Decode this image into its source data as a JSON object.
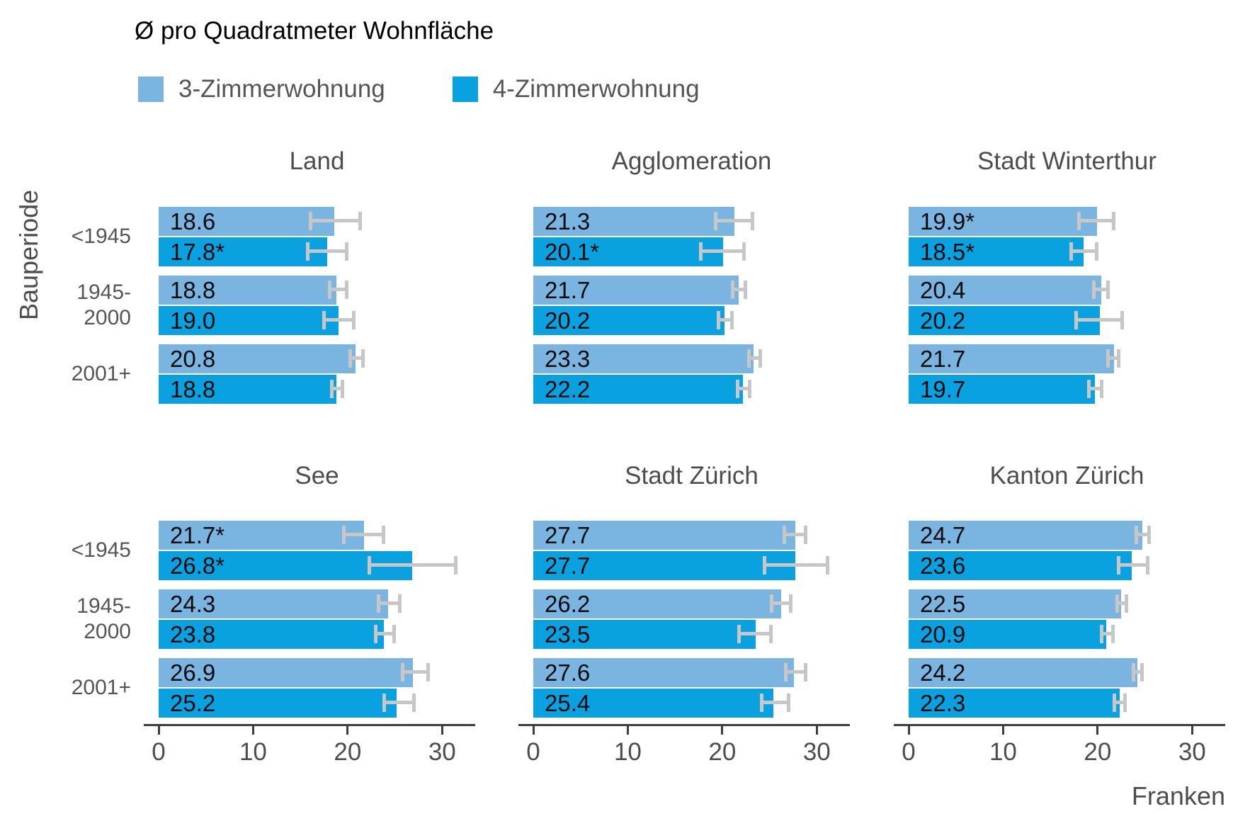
{
  "title": "Ø pro Quadratmeter Wohnfläche",
  "y_axis_label": "Bauperiode",
  "legend": [
    {
      "label": "3-Zimmerwohnung",
      "color": "#7AB4E1"
    },
    {
      "label": "4-Zimmerwohnung",
      "color": "#0AA1E0"
    }
  ],
  "row_categories": [
    {
      "label": "<1945",
      "lines": [
        "<1945"
      ]
    },
    {
      "label": "1945-2000",
      "lines": [
        "1945-",
        "2000"
      ]
    },
    {
      "label": "2001+",
      "lines": [
        "2001+"
      ]
    }
  ],
  "x_axis": {
    "label": "Franken",
    "ticks": [
      0,
      10,
      20,
      30
    ],
    "max": 33.5
  },
  "chart_data": {
    "type": "bar",
    "orientation": "horizontal",
    "unit": "Franken",
    "title": "Ø pro Quadratmeter Wohnfläche",
    "series_names": [
      "3-Zimmerwohnung",
      "4-Zimmerwohnung"
    ],
    "series_colors": [
      "#7AB4E1",
      "#0AA1E0"
    ],
    "error_bar_color": "#c7c7c7",
    "xlim": [
      0,
      33.5
    ],
    "panels": [
      {
        "title": "Land",
        "groups": [
          {
            "period": "<1945",
            "bars": [
              {
                "series": "3-Zimmerwohnung",
                "value": 18.6,
                "label": "18.6",
                "ci": [
                  15.9,
                  21.5
                ]
              },
              {
                "series": "4-Zimmerwohnung",
                "value": 17.8,
                "label": "17.8*",
                "ci": [
                  15.6,
                  20.1
                ]
              }
            ]
          },
          {
            "period": "1945-2000",
            "bars": [
              {
                "series": "3-Zimmerwohnung",
                "value": 18.8,
                "label": "18.8",
                "ci": [
                  17.9,
                  20.1
                ]
              },
              {
                "series": "4-Zimmerwohnung",
                "value": 19.0,
                "label": "19.0",
                "ci": [
                  17.3,
                  20.8
                ]
              }
            ]
          },
          {
            "period": "2001+",
            "bars": [
              {
                "series": "3-Zimmerwohnung",
                "value": 20.8,
                "label": "20.8",
                "ci": [
                  20.1,
                  21.8
                ]
              },
              {
                "series": "4-Zimmerwohnung",
                "value": 18.8,
                "label": "18.8",
                "ci": [
                  18.1,
                  19.6
                ]
              }
            ]
          }
        ]
      },
      {
        "title": "Agglomeration",
        "groups": [
          {
            "period": "<1945",
            "bars": [
              {
                "series": "3-Zimmerwohnung",
                "value": 21.3,
                "label": "21.3",
                "ci": [
                  19.1,
                  23.4
                ]
              },
              {
                "series": "4-Zimmerwohnung",
                "value": 20.1,
                "label": "20.1*",
                "ci": [
                  17.5,
                  22.5
                ]
              }
            ]
          },
          {
            "period": "1945-2000",
            "bars": [
              {
                "series": "3-Zimmerwohnung",
                "value": 21.7,
                "label": "21.7",
                "ci": [
                  20.9,
                  22.6
                ]
              },
              {
                "series": "4-Zimmerwohnung",
                "value": 20.2,
                "label": "20.2",
                "ci": [
                  19.4,
                  21.2
                ]
              }
            ]
          },
          {
            "period": "2001+",
            "bars": [
              {
                "series": "3-Zimmerwohnung",
                "value": 23.3,
                "label": "23.3",
                "ci": [
                  22.6,
                  24.2
                ]
              },
              {
                "series": "4-Zimmerwohnung",
                "value": 22.2,
                "label": "22.2",
                "ci": [
                  21.4,
                  23.1
                ]
              }
            ]
          }
        ]
      },
      {
        "title": "Stadt Winterthur",
        "groups": [
          {
            "period": "<1945",
            "bars": [
              {
                "series": "3-Zimmerwohnung",
                "value": 19.9,
                "label": "19.9*",
                "ci": [
                  17.8,
                  21.9
                ]
              },
              {
                "series": "4-Zimmerwohnung",
                "value": 18.5,
                "label": "18.5*",
                "ci": [
                  17.0,
                  20.1
                ]
              }
            ]
          },
          {
            "period": "1945-2000",
            "bars": [
              {
                "series": "3-Zimmerwohnung",
                "value": 20.4,
                "label": "20.4",
                "ci": [
                  19.4,
                  21.3
                ]
              },
              {
                "series": "4-Zimmerwohnung",
                "value": 20.2,
                "label": "20.2",
                "ci": [
                  17.5,
                  22.8
                ]
              }
            ]
          },
          {
            "period": "2001+",
            "bars": [
              {
                "series": "3-Zimmerwohnung",
                "value": 21.7,
                "label": "21.7",
                "ci": [
                  20.9,
                  22.4
                ]
              },
              {
                "series": "4-Zimmerwohnung",
                "value": 19.7,
                "label": "19.7",
                "ci": [
                  18.9,
                  20.6
                ]
              }
            ]
          }
        ]
      },
      {
        "title": "See",
        "groups": [
          {
            "period": "<1945",
            "bars": [
              {
                "series": "3-Zimmerwohnung",
                "value": 21.7,
                "label": "21.7*",
                "ci": [
                  19.4,
                  24.0
                ]
              },
              {
                "series": "4-Zimmerwohnung",
                "value": 26.8,
                "label": "26.8*",
                "ci": [
                  22.1,
                  31.6
                ]
              }
            ]
          },
          {
            "period": "1945-2000",
            "bars": [
              {
                "series": "3-Zimmerwohnung",
                "value": 24.3,
                "label": "24.3",
                "ci": [
                  23.1,
                  25.7
                ]
              },
              {
                "series": "4-Zimmerwohnung",
                "value": 23.8,
                "label": "23.8",
                "ci": [
                  22.8,
                  25.1
                ]
              }
            ]
          },
          {
            "period": "2001+",
            "bars": [
              {
                "series": "3-Zimmerwohnung",
                "value": 26.9,
                "label": "26.9",
                "ci": [
                  25.6,
                  28.7
                ]
              },
              {
                "series": "4-Zimmerwohnung",
                "value": 25.2,
                "label": "25.2",
                "ci": [
                  23.7,
                  27.2
                ]
              }
            ]
          }
        ]
      },
      {
        "title": "Stadt Zürich",
        "groups": [
          {
            "period": "<1945",
            "bars": [
              {
                "series": "3-Zimmerwohnung",
                "value": 27.7,
                "label": "27.7",
                "ci": [
                  26.4,
                  29.0
                ]
              },
              {
                "series": "4-Zimmerwohnung",
                "value": 27.7,
                "label": "27.7",
                "ci": [
                  24.3,
                  31.3
                ]
              }
            ]
          },
          {
            "period": "1945-2000",
            "bars": [
              {
                "series": "3-Zimmerwohnung",
                "value": 26.2,
                "label": "26.2",
                "ci": [
                  25.0,
                  27.4
                ]
              },
              {
                "series": "4-Zimmerwohnung",
                "value": 23.5,
                "label": "23.5",
                "ci": [
                  21.6,
                  25.3
                ]
              }
            ]
          },
          {
            "period": "2001+",
            "bars": [
              {
                "series": "3-Zimmerwohnung",
                "value": 27.6,
                "label": "27.6",
                "ci": [
                  26.5,
                  29.0
                ]
              },
              {
                "series": "4-Zimmerwohnung",
                "value": 25.4,
                "label": "25.4",
                "ci": [
                  24.0,
                  27.2
                ]
              }
            ]
          }
        ]
      },
      {
        "title": "Kanton Zürich",
        "groups": [
          {
            "period": "<1945",
            "bars": [
              {
                "series": "3-Zimmerwohnung",
                "value": 24.7,
                "label": "24.7",
                "ci": [
                  23.9,
                  25.6
                ]
              },
              {
                "series": "4-Zimmerwohnung",
                "value": 23.6,
                "label": "23.6",
                "ci": [
                  22.0,
                  25.5
                ]
              }
            ]
          },
          {
            "period": "1945-2000",
            "bars": [
              {
                "series": "3-Zimmerwohnung",
                "value": 22.5,
                "label": "22.5",
                "ci": [
                  21.9,
                  23.2
                ]
              },
              {
                "series": "4-Zimmerwohnung",
                "value": 20.9,
                "label": "20.9",
                "ci": [
                  20.2,
                  21.8
                ]
              }
            ]
          },
          {
            "period": "2001+",
            "bars": [
              {
                "series": "3-Zimmerwohnung",
                "value": 24.2,
                "label": "24.2",
                "ci": [
                  23.6,
                  24.9
                ]
              },
              {
                "series": "4-Zimmerwohnung",
                "value": 22.3,
                "label": "22.3",
                "ci": [
                  21.6,
                  23.1
                ]
              }
            ]
          }
        ]
      }
    ]
  }
}
